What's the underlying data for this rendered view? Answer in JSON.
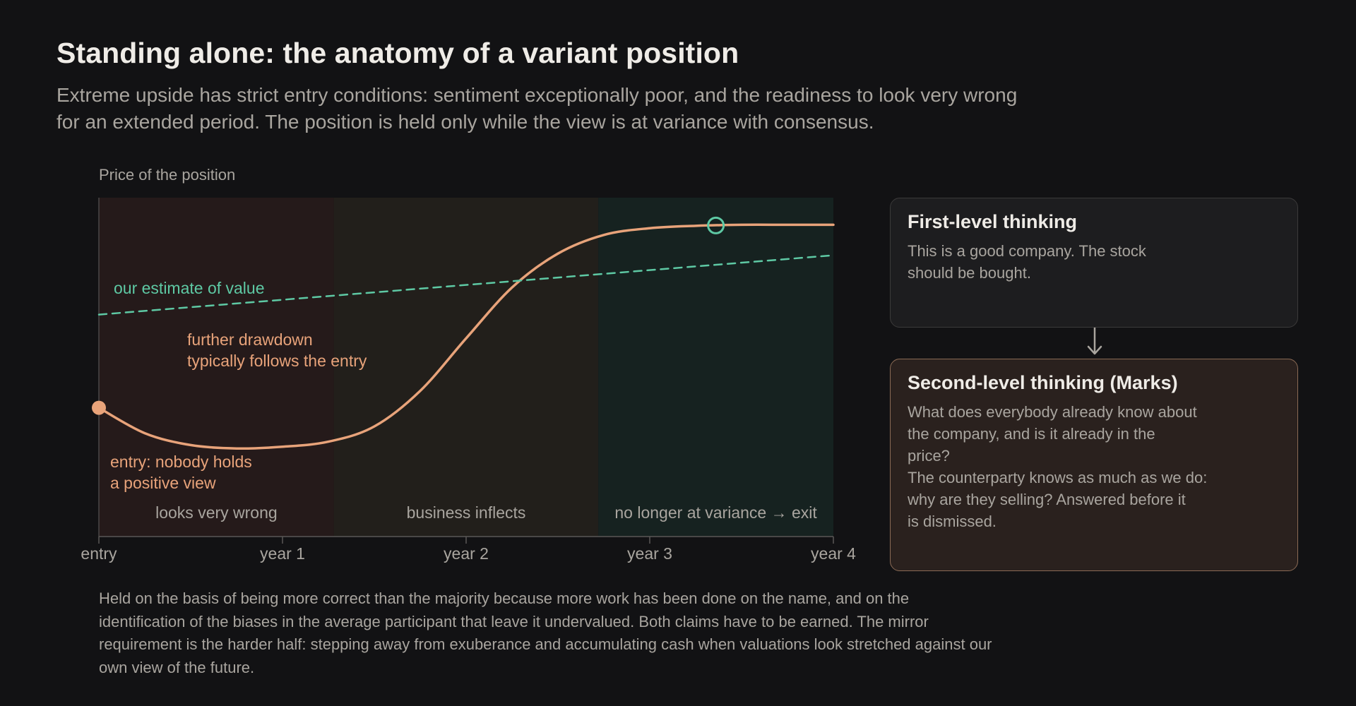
{
  "title": "Standing alone: the anatomy of a variant position",
  "subtitle_lines": [
    "Extreme upside has strict entry conditions: sentiment exceptionally poor, and the readiness to look very wrong",
    "for an extended period. The position is held only while the view is at variance with consensus."
  ],
  "colors": {
    "background": "#121214",
    "price_curve": "#e8a37a",
    "value_line": "#5ec9a4",
    "phase_wrong_tint": "#251a1a",
    "phase_inflect_tint": "#221f1b",
    "phase_exit_tint": "#162220",
    "card_second_border": "#8a6a55"
  },
  "chart_data": {
    "type": "line",
    "ylabel": "Price of the position",
    "x_ticks": [
      "entry",
      "year 1",
      "year 2",
      "year 3",
      "year 4"
    ],
    "xlim": [
      0,
      4
    ],
    "ylim": [
      0,
      1
    ],
    "series": [
      {
        "name": "price",
        "style": "solid",
        "color": "#e8a37a",
        "points": [
          [
            0,
            0.38
          ],
          [
            0.25,
            0.305
          ],
          [
            0.5,
            0.27
          ],
          [
            0.75,
            0.26
          ],
          [
            1.0,
            0.265
          ],
          [
            1.25,
            0.28
          ],
          [
            1.5,
            0.325
          ],
          [
            1.75,
            0.43
          ],
          [
            2.0,
            0.585
          ],
          [
            2.25,
            0.735
          ],
          [
            2.5,
            0.835
          ],
          [
            2.75,
            0.89
          ],
          [
            3.0,
            0.91
          ],
          [
            3.25,
            0.917
          ],
          [
            3.5,
            0.92
          ],
          [
            3.75,
            0.92
          ],
          [
            4.0,
            0.92
          ]
        ]
      },
      {
        "name": "our estimate of value",
        "style": "dashed",
        "color": "#5ec9a4",
        "points": [
          [
            0,
            0.655
          ],
          [
            4.0,
            0.83
          ]
        ]
      }
    ],
    "phases": [
      {
        "label": "looks very wrong",
        "start": 0,
        "end": 1.28,
        "color": "#251a1a"
      },
      {
        "label": "business inflects",
        "start": 1.28,
        "end": 2.72,
        "color": "#221f1b"
      },
      {
        "label": "no longer at variance → exit",
        "start": 2.72,
        "end": 4.0,
        "color": "#162220"
      }
    ],
    "markers": [
      {
        "kind": "filled",
        "x": 0,
        "y": 0.38,
        "color": "#e8a37a"
      },
      {
        "kind": "ring",
        "x": 3.36,
        "y": 0.918,
        "color": "#5ec9a4"
      }
    ],
    "annotations": [
      {
        "lines": [
          "our estimate of value"
        ],
        "color": "#5ec9a4"
      },
      {
        "lines": [
          "further drawdown",
          "typically follows the entry"
        ],
        "color": "#e8a37a"
      },
      {
        "lines": [
          "entry: nobody holds",
          "a positive view"
        ],
        "color": "#e8a37a"
      }
    ]
  },
  "cards": {
    "first": {
      "title": "First-level thinking",
      "lines": [
        "This is a good company. The stock",
        "should be bought."
      ]
    },
    "second": {
      "title": "Second-level thinking (Marks)",
      "lines": [
        "What does everybody already know about",
        "the company, and is it already in the",
        "price?",
        "The counterparty knows as much as we do:",
        "why are they selling? Answered before it",
        "is dismissed."
      ]
    }
  },
  "footer_lines": [
    "Held on the basis of being more correct than the majority because more work has been done on the name, and on the",
    "identification of the biases in the average participant that leave it undervalued. Both claims have to be earned. The mirror",
    "requirement is the harder half: stepping away from exuberance and accumulating cash when valuations look stretched against our",
    "own view of the future."
  ]
}
